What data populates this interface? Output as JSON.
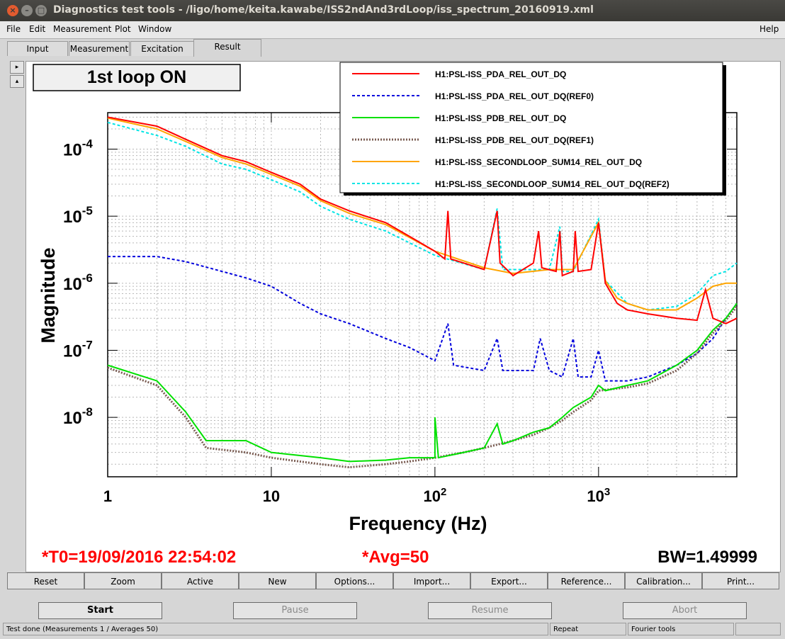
{
  "window": {
    "title": "Diagnostics test tools - /ligo/home/keita.kawabe/ISS2ndAnd3rdLoop/iss_spectrum_20160919.xml",
    "buttons": [
      "×",
      "–",
      "□"
    ]
  },
  "menu": {
    "items": [
      "File",
      "Edit",
      "Measurement",
      "Plot",
      "Window"
    ],
    "help": "Help"
  },
  "tabs": [
    "Input",
    "Measurement",
    "Excitation",
    "Result"
  ],
  "side_buttons": [
    "▸",
    "▴"
  ],
  "plot": {
    "label_box": "1st loop ON",
    "t0_text": "*T0=19/09/2016 22:54:02",
    "avg_text": "*Avg=50",
    "bw_text": "BW=1.49999",
    "colors": {
      "text_red": "#ff0000"
    }
  },
  "chart_data": {
    "type": "line",
    "xlabel": "Frequency (Hz)",
    "ylabel": "Magnitude",
    "xscale": "log",
    "yscale": "log",
    "xlim": [
      1,
      7000
    ],
    "ylim": [
      1.3e-09,
      0.00035
    ],
    "grid": true,
    "legend_position": "top-right",
    "x_ticks": [
      {
        "base": "1",
        "exp": ""
      },
      {
        "base": "10",
        "exp": ""
      },
      {
        "base": "10",
        "exp": "2"
      },
      {
        "base": "10",
        "exp": "3"
      }
    ],
    "y_ticks": [
      {
        "base": "10",
        "exp": "-4"
      },
      {
        "base": "10",
        "exp": "-5"
      },
      {
        "base": "10",
        "exp": "-6"
      },
      {
        "base": "10",
        "exp": "-7"
      },
      {
        "base": "10",
        "exp": "-8"
      }
    ],
    "series": [
      {
        "name": "H1:PSL-ISS_PDA_REL_OUT_DQ",
        "color": "#ff0000",
        "style": "solid",
        "points": [
          [
            1,
            0.0003
          ],
          [
            2,
            0.00022
          ],
          [
            3,
            0.00014
          ],
          [
            5,
            8e-05
          ],
          [
            7,
            6.5e-05
          ],
          [
            10,
            4.5e-05
          ],
          [
            15,
            3e-05
          ],
          [
            20,
            1.8e-05
          ],
          [
            30,
            1.2e-05
          ],
          [
            50,
            8e-06
          ],
          [
            70,
            5e-06
          ],
          [
            100,
            3e-06
          ],
          [
            115,
            2.3e-06
          ],
          [
            120,
            1.2e-05
          ],
          [
            125,
            2.3e-06
          ],
          [
            150,
            2e-06
          ],
          [
            200,
            1.6e-06
          ],
          [
            240,
            1.2e-05
          ],
          [
            250,
            2e-06
          ],
          [
            300,
            1.3e-06
          ],
          [
            400,
            2e-06
          ],
          [
            430,
            6e-06
          ],
          [
            450,
            1.7e-06
          ],
          [
            550,
            1.5e-06
          ],
          [
            580,
            6e-06
          ],
          [
            600,
            1.3e-06
          ],
          [
            700,
            1.5e-06
          ],
          [
            720,
            6e-06
          ],
          [
            750,
            1.5e-06
          ],
          [
            900,
            1.6e-06
          ],
          [
            1000,
            8e-06
          ],
          [
            1100,
            1e-06
          ],
          [
            1300,
            5e-07
          ],
          [
            1500,
            4e-07
          ],
          [
            2000,
            3.5e-07
          ],
          [
            3000,
            3e-07
          ],
          [
            4000,
            2.8e-07
          ],
          [
            4500,
            8e-07
          ],
          [
            5000,
            3e-07
          ],
          [
            6000,
            2.5e-07
          ],
          [
            7000,
            3e-07
          ]
        ]
      },
      {
        "name": "H1:PSL-ISS_PDA_REL_OUT_DQ(REF0)",
        "color": "#0000dd",
        "style": "dashed",
        "points": [
          [
            1,
            2.5e-06
          ],
          [
            2,
            2.5e-06
          ],
          [
            3,
            2.1e-06
          ],
          [
            5,
            1.5e-06
          ],
          [
            7,
            1.2e-06
          ],
          [
            10,
            9e-07
          ],
          [
            15,
            5e-07
          ],
          [
            20,
            3.5e-07
          ],
          [
            30,
            2.5e-07
          ],
          [
            50,
            1.5e-07
          ],
          [
            70,
            1.1e-07
          ],
          [
            100,
            7e-08
          ],
          [
            120,
            2.5e-07
          ],
          [
            130,
            6e-08
          ],
          [
            200,
            5e-08
          ],
          [
            240,
            1.5e-07
          ],
          [
            260,
            5e-08
          ],
          [
            300,
            5e-08
          ],
          [
            400,
            5e-08
          ],
          [
            440,
            1.5e-07
          ],
          [
            500,
            5e-08
          ],
          [
            600,
            4e-08
          ],
          [
            700,
            1.5e-07
          ],
          [
            750,
            4e-08
          ],
          [
            900,
            4e-08
          ],
          [
            1000,
            1e-07
          ],
          [
            1100,
            3.5e-08
          ],
          [
            1500,
            3.5e-08
          ],
          [
            2000,
            4e-08
          ],
          [
            3000,
            6e-08
          ],
          [
            4000,
            9e-08
          ],
          [
            5000,
            1.5e-07
          ],
          [
            6000,
            3e-07
          ],
          [
            7000,
            5e-07
          ]
        ]
      },
      {
        "name": "H1:PSL-ISS_PDB_REL_OUT_DQ",
        "color": "#00e000",
        "style": "solid",
        "points": [
          [
            1,
            6e-08
          ],
          [
            2,
            3.5e-08
          ],
          [
            3,
            1.2e-08
          ],
          [
            4,
            4.5e-09
          ],
          [
            7,
            4.5e-09
          ],
          [
            10,
            3e-09
          ],
          [
            20,
            2.5e-09
          ],
          [
            30,
            2.2e-09
          ],
          [
            50,
            2.3e-09
          ],
          [
            70,
            2.5e-09
          ],
          [
            100,
            2.5e-09
          ],
          [
            100,
            1e-08
          ],
          [
            105,
            2.5e-09
          ],
          [
            150,
            3e-09
          ],
          [
            200,
            3.5e-09
          ],
          [
            240,
            8e-09
          ],
          [
            260,
            4e-09
          ],
          [
            300,
            4.5e-09
          ],
          [
            400,
            6e-09
          ],
          [
            500,
            7e-09
          ],
          [
            600,
            1e-08
          ],
          [
            700,
            1.4e-08
          ],
          [
            900,
            2e-08
          ],
          [
            1000,
            3e-08
          ],
          [
            1100,
            2.5e-08
          ],
          [
            1500,
            3e-08
          ],
          [
            2000,
            3.5e-08
          ],
          [
            3000,
            6e-08
          ],
          [
            4000,
            1e-07
          ],
          [
            5000,
            2e-07
          ],
          [
            6000,
            3e-07
          ],
          [
            7000,
            5e-07
          ]
        ]
      },
      {
        "name": "H1:PSL-ISS_PDB_REL_OUT_DQ(REF1)",
        "color": "#7a5c52",
        "style": "dotted",
        "points": [
          [
            1,
            5.5e-08
          ],
          [
            2,
            3e-08
          ],
          [
            3,
            1e-08
          ],
          [
            4,
            3.5e-09
          ],
          [
            7,
            3e-09
          ],
          [
            10,
            2.5e-09
          ],
          [
            20,
            2e-09
          ],
          [
            30,
            1.8e-09
          ],
          [
            50,
            2e-09
          ],
          [
            70,
            2.2e-09
          ],
          [
            100,
            2.5e-09
          ],
          [
            150,
            3e-09
          ],
          [
            200,
            3.5e-09
          ],
          [
            300,
            4.5e-09
          ],
          [
            400,
            5.5e-09
          ],
          [
            500,
            7e-09
          ],
          [
            600,
            9e-09
          ],
          [
            700,
            1.2e-08
          ],
          [
            900,
            1.8e-08
          ],
          [
            1000,
            2.5e-08
          ],
          [
            1500,
            2.8e-08
          ],
          [
            2000,
            3.2e-08
          ],
          [
            3000,
            5e-08
          ],
          [
            4000,
            9e-08
          ],
          [
            5000,
            1.8e-07
          ],
          [
            6000,
            2.8e-07
          ],
          [
            7000,
            4.5e-07
          ]
        ]
      },
      {
        "name": "H1:PSL-ISS_SECONDLOOP_SUM14_REL_OUT_DQ",
        "color": "#ffa500",
        "style": "solid",
        "points": [
          [
            1,
            0.00029
          ],
          [
            2,
            0.0002
          ],
          [
            3,
            0.00013
          ],
          [
            5,
            7.5e-05
          ],
          [
            7,
            6e-05
          ],
          [
            10,
            4.2e-05
          ],
          [
            15,
            2.8e-05
          ],
          [
            20,
            1.7e-05
          ],
          [
            30,
            1.1e-05
          ],
          [
            50,
            7.5e-06
          ],
          [
            70,
            4.8e-06
          ],
          [
            100,
            3e-06
          ],
          [
            200,
            1.7e-06
          ],
          [
            300,
            1.4e-06
          ],
          [
            500,
            1.6e-06
          ],
          [
            700,
            1.6e-06
          ],
          [
            1000,
            8e-06
          ],
          [
            1100,
            1.1e-06
          ],
          [
            1300,
            6e-07
          ],
          [
            1500,
            5e-07
          ],
          [
            2000,
            4e-07
          ],
          [
            3000,
            4e-07
          ],
          [
            4000,
            6e-07
          ],
          [
            5000,
            9e-07
          ],
          [
            6000,
            1e-06
          ],
          [
            7000,
            1e-06
          ]
        ]
      },
      {
        "name": "H1:PSL-ISS_SECONDLOOP_SUM14_REL_OUT_DQ(REF2)",
        "color": "#00e5e5",
        "style": "dashed",
        "points": [
          [
            1,
            0.00025
          ],
          [
            2,
            0.00016
          ],
          [
            3,
            0.00011
          ],
          [
            5,
            6e-05
          ],
          [
            7,
            5e-05
          ],
          [
            10,
            3.5e-05
          ],
          [
            15,
            2.3e-05
          ],
          [
            20,
            1.4e-05
          ],
          [
            30,
            9e-06
          ],
          [
            50,
            6e-06
          ],
          [
            70,
            4e-06
          ],
          [
            100,
            2.6e-06
          ],
          [
            200,
            1.6e-06
          ],
          [
            240,
            1.3e-05
          ],
          [
            260,
            1.6e-06
          ],
          [
            500,
            1.6e-06
          ],
          [
            580,
            7e-06
          ],
          [
            600,
            1.5e-06
          ],
          [
            700,
            1.5e-06
          ],
          [
            1000,
            9e-06
          ],
          [
            1100,
            1.1e-06
          ],
          [
            1500,
            5e-07
          ],
          [
            2000,
            4e-07
          ],
          [
            3000,
            4.5e-07
          ],
          [
            4000,
            7e-07
          ],
          [
            5000,
            1.3e-06
          ],
          [
            6000,
            1.5e-06
          ],
          [
            7000,
            2e-06
          ]
        ]
      }
    ]
  },
  "plot_buttons": [
    "Reset",
    "Zoom",
    "Active",
    "New",
    "Options...",
    "Import...",
    "Export...",
    "Reference...",
    "Calibration...",
    "Print..."
  ],
  "control_buttons": [
    {
      "label": "Start",
      "enabled": true
    },
    {
      "label": "Pause",
      "enabled": false
    },
    {
      "label": "Resume",
      "enabled": false
    },
    {
      "label": "Abort",
      "enabled": false
    }
  ],
  "status": {
    "message": "Test done (Measurements 1 / Averages 50)",
    "mode": "Repeat",
    "tool": "Fourier tools"
  }
}
